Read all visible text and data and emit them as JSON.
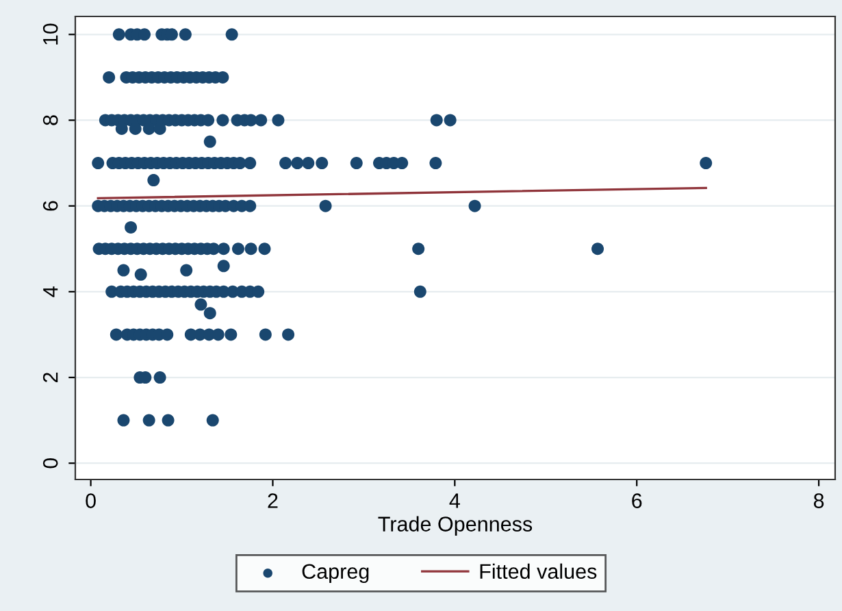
{
  "chart_data": {
    "type": "scatter",
    "xlabel": "Trade Openness",
    "xlim": [
      -0.17,
      8.18
    ],
    "ylim": [
      -0.38,
      10.42
    ],
    "xticks": [
      0,
      2,
      4,
      6,
      8
    ],
    "yticks": [
      0,
      2,
      4,
      6,
      8,
      10
    ],
    "grid": "y",
    "legend": "bottom",
    "series": [
      {
        "name": "Capreg",
        "color": "#1a476f",
        "marker": "circle",
        "x": [
          0.31,
          0.44,
          0.51,
          0.59,
          0.78,
          0.84,
          0.89,
          1.04,
          1.55,
          0.2,
          0.39,
          0.46,
          0.53,
          0.6,
          0.67,
          0.74,
          0.81,
          0.88,
          0.95,
          1.02,
          1.09,
          1.16,
          1.23,
          1.3,
          1.37,
          1.45,
          0.16,
          0.23,
          0.3,
          0.37,
          0.44,
          0.51,
          0.58,
          0.65,
          0.72,
          0.79,
          0.86,
          0.93,
          1.0,
          1.07,
          1.14,
          1.21,
          1.29,
          1.45,
          1.61,
          1.69,
          1.76,
          1.87,
          2.06,
          3.8,
          3.95,
          0.34,
          0.49,
          0.64,
          0.76,
          1.31,
          0.08,
          0.24,
          0.31,
          0.38,
          0.45,
          0.52,
          0.59,
          0.66,
          0.73,
          0.8,
          0.87,
          0.94,
          1.01,
          1.08,
          1.15,
          1.22,
          1.29,
          1.36,
          1.43,
          1.5,
          1.57,
          1.64,
          1.75,
          2.14,
          2.27,
          2.39,
          2.54,
          2.92,
          3.17,
          3.25,
          3.33,
          3.42,
          3.79,
          6.76,
          0.69,
          0.08,
          0.15,
          0.22,
          0.29,
          0.36,
          0.43,
          0.5,
          0.57,
          0.64,
          0.71,
          0.78,
          0.85,
          0.92,
          0.99,
          1.06,
          1.13,
          1.2,
          1.27,
          1.34,
          1.41,
          1.48,
          1.57,
          1.66,
          1.75,
          2.58,
          4.22,
          0.44,
          0.09,
          0.16,
          0.23,
          0.3,
          0.37,
          0.44,
          0.51,
          0.58,
          0.65,
          0.72,
          0.79,
          0.86,
          0.93,
          1.0,
          1.07,
          1.14,
          1.21,
          1.28,
          1.35,
          1.46,
          1.62,
          1.76,
          1.91,
          3.6,
          5.57,
          1.46,
          0.36,
          1.05,
          0.55,
          0.23,
          0.33,
          0.4,
          0.47,
          0.54,
          0.61,
          0.68,
          0.75,
          0.82,
          0.89,
          0.96,
          1.03,
          1.1,
          1.17,
          1.24,
          1.31,
          1.38,
          1.46,
          1.56,
          1.66,
          1.75,
          1.84,
          3.62,
          1.21,
          1.31,
          0.28,
          0.4,
          0.47,
          0.54,
          0.61,
          0.68,
          0.75,
          0.84,
          1.1,
          1.2,
          1.3,
          1.4,
          1.54,
          1.92,
          2.17,
          0.54,
          0.6,
          0.76,
          0.36,
          0.64,
          0.85,
          1.34
        ],
        "values": [
          10,
          10,
          10,
          10,
          10,
          10,
          10,
          10,
          10,
          9,
          9,
          9,
          9,
          9,
          9,
          9,
          9,
          9,
          9,
          9,
          9,
          9,
          9,
          9,
          9,
          9,
          8,
          8,
          8,
          8,
          8,
          8,
          8,
          8,
          8,
          8,
          8,
          8,
          8,
          8,
          8,
          8,
          8,
          8,
          8,
          8,
          8,
          8,
          8,
          8,
          8,
          7.8,
          7.8,
          7.8,
          7.8,
          7.5,
          7,
          7,
          7,
          7,
          7,
          7,
          7,
          7,
          7,
          7,
          7,
          7,
          7,
          7,
          7,
          7,
          7,
          7,
          7,
          7,
          7,
          7,
          7,
          7,
          7,
          7,
          7,
          7,
          7,
          7,
          7,
          7,
          7,
          7,
          6.6,
          6,
          6,
          6,
          6,
          6,
          6,
          6,
          6,
          6,
          6,
          6,
          6,
          6,
          6,
          6,
          6,
          6,
          6,
          6,
          6,
          6,
          6,
          6,
          6,
          6,
          6,
          5.5,
          5,
          5,
          5,
          5,
          5,
          5,
          5,
          5,
          5,
          5,
          5,
          5,
          5,
          5,
          5,
          5,
          5,
          5,
          5,
          5,
          5,
          5,
          5,
          5,
          5,
          4.6,
          4.5,
          4.5,
          4.4,
          4,
          4,
          4,
          4,
          4,
          4,
          4,
          4,
          4,
          4,
          4,
          4,
          4,
          4,
          4,
          4,
          4,
          4,
          4,
          4,
          4,
          4,
          4,
          3.7,
          3.5,
          3,
          3,
          3,
          3,
          3,
          3,
          3,
          3,
          3,
          3,
          3,
          3,
          3,
          3,
          3,
          2,
          2,
          2,
          1,
          1,
          1,
          1
        ]
      },
      {
        "name": "Fitted values",
        "type": "line",
        "color": "#90353b",
        "x": [
          0.08,
          6.76
        ],
        "values": [
          6.18,
          6.42
        ]
      }
    ]
  }
}
